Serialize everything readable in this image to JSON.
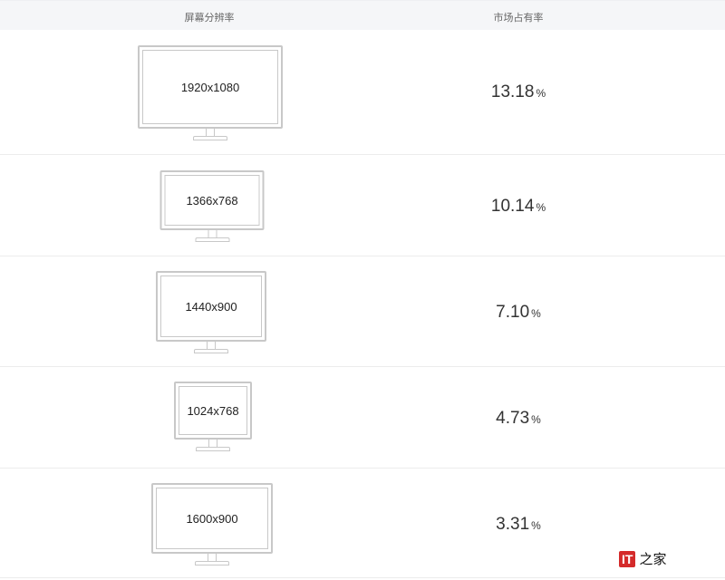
{
  "header": {
    "col_resolution": "屏幕分辨率",
    "col_share": "市场占有率"
  },
  "rows": [
    {
      "resolution": "1920x1080",
      "share": "13.18",
      "unit": "%"
    },
    {
      "resolution": "1366x768",
      "share": "10.14",
      "unit": "%"
    },
    {
      "resolution": "1440x900",
      "share": "7.10",
      "unit": "%"
    },
    {
      "resolution": "1024x768",
      "share": "4.73",
      "unit": "%"
    },
    {
      "resolution": "1600x900",
      "share": "3.31",
      "unit": "%"
    }
  ],
  "watermark": {
    "logo": "IT之家",
    "brand_color": "#d42a2a"
  }
}
